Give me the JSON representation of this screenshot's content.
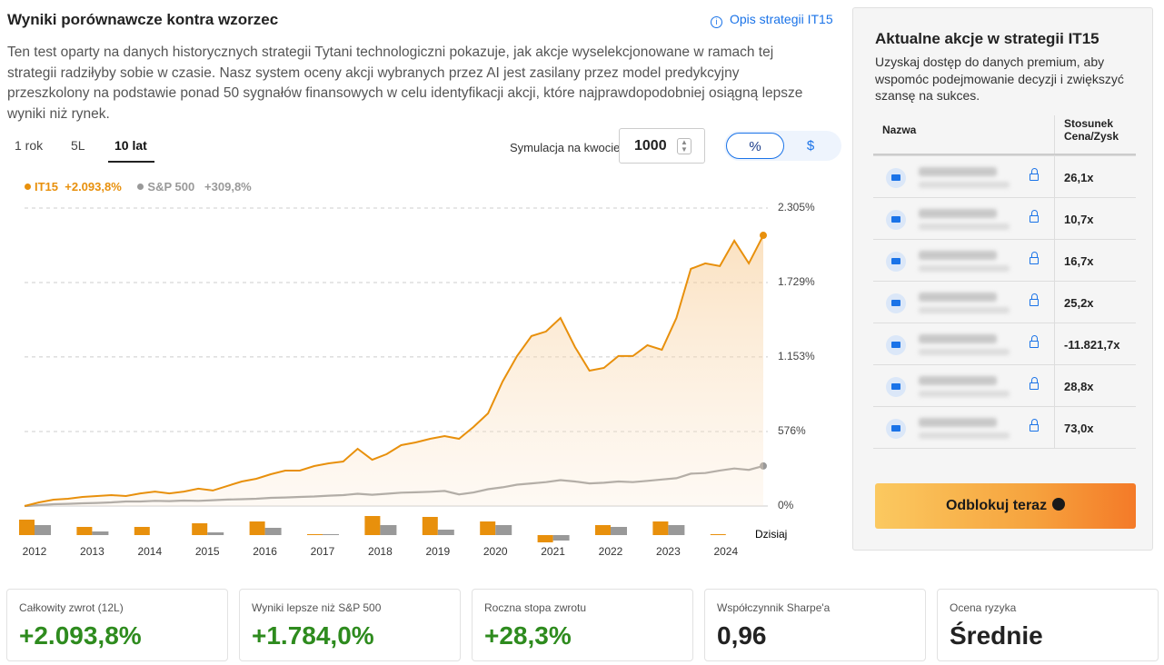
{
  "header": {
    "title": "Wyniki porównawcze kontra wzorzec",
    "link": "Opis strategii IT15"
  },
  "description": "Ten test oparty na danych historycznych strategii Tytani technologiczni pokazuje, jak akcje wyselekcjonowane w ramach tej strategii radziłyby sobie w czasie. Nasz system oceny akcji wybranych przez AI jest zasilany przez model predykcyjny przeszkolony na podstawie ponad 50 sygnałów finansowych w celu identyfikacji akcji, które najprawdopodobniej osiągną lepsze wyniki niż rynek.",
  "tabs": [
    "1 rok",
    "5L",
    "10 lat"
  ],
  "simulation": {
    "label": "Symulacja na kwocie",
    "amount": "1000"
  },
  "unit_toggle": [
    "%",
    "$"
  ],
  "chart_data": [
    {
      "type": "line",
      "series": [
        {
          "name": "IT15",
          "total_label": "+2.093,8%",
          "color": "#e8900c",
          "values": [
            0,
            28,
            49,
            56,
            70,
            77,
            84,
            77,
            98,
            112,
            98,
            112,
            134,
            120,
            155,
            190,
            211,
            246,
            274,
            274,
            309,
            330,
            344,
            443,
            358,
            401,
            471,
            492,
            520,
            541,
            520,
            612,
            717,
            963,
            1160,
            1315,
            1350,
            1455,
            1230,
            1047,
            1068,
            1160,
            1160,
            1244,
            1209,
            1455,
            1835,
            1877,
            1856,
            2053,
            1877,
            2093.8
          ]
        },
        {
          "name": "S&P 500",
          "total_label": "+309,8%",
          "color": "#999999",
          "values": [
            0,
            7,
            14,
            17,
            21,
            24,
            28,
            35,
            35,
            40,
            38,
            42,
            40,
            45,
            50,
            53,
            56,
            63,
            66,
            70,
            74,
            80,
            84,
            95,
            87,
            95,
            103,
            106,
            110,
            117,
            90,
            105,
            130,
            145,
            165,
            175,
            185,
            200,
            190,
            175,
            180,
            190,
            185,
            195,
            205,
            215,
            250,
            255,
            275,
            290,
            280,
            309.8
          ]
        }
      ],
      "ylim": [
        0,
        2305
      ],
      "yticks": [
        {
          "value": 0,
          "label": "0%"
        },
        {
          "value": 576,
          "label": "576%"
        },
        {
          "value": 1153,
          "label": "1.153%"
        },
        {
          "value": 1729,
          "label": "1.729%"
        },
        {
          "value": 2305,
          "label": "2.305%"
        }
      ],
      "grid": true
    },
    {
      "type": "bar",
      "categories": [
        "2012",
        "2013",
        "2014",
        "2015",
        "2016",
        "2017",
        "2018",
        "2019",
        "2020",
        "2021",
        "2022",
        "2023",
        "2024"
      ],
      "series": [
        {
          "name": "IT15",
          "color": "#e8900c",
          "values": [
            17,
            9,
            9,
            13,
            15,
            1,
            21,
            20,
            15,
            -8,
            11,
            15,
            1
          ]
        },
        {
          "name": "S&P 500",
          "color": "#999999",
          "values": [
            11,
            4,
            0,
            3,
            8,
            1,
            11,
            6,
            11,
            -6,
            9,
            11,
            0
          ]
        }
      ],
      "ylim": [
        -10,
        22
      ],
      "today_label": "Dzisiaj"
    }
  ],
  "sidebar": {
    "title": "Aktualne akcje w strategii IT15",
    "subtitle": "Uzyskaj dostęp do danych premium, aby wspomóc podejmowanie decyzji i zwiększyć szansę na sukces.",
    "columns": [
      "Nazwa",
      "Stosunek Cena/Zysk"
    ],
    "pe_ratios": [
      "26,1x",
      "10,7x",
      "16,7x",
      "25,2x",
      "-11.821,7x",
      "28,8x",
      "73,0x"
    ],
    "button": "Odblokuj teraz"
  },
  "stats": [
    {
      "label": "Całkowity zwrot (12L)",
      "value": "+2.093,8%"
    },
    {
      "label": "Wyniki lepsze niż S&P 500",
      "value": "+1.784,0%"
    },
    {
      "label": "Roczna stopa zwrotu",
      "value": "+28,3%"
    },
    {
      "label": "Współczynnik Sharpe'a",
      "value": "0,96"
    },
    {
      "label": "Ocena ryzyka",
      "value": "Średnie"
    }
  ]
}
